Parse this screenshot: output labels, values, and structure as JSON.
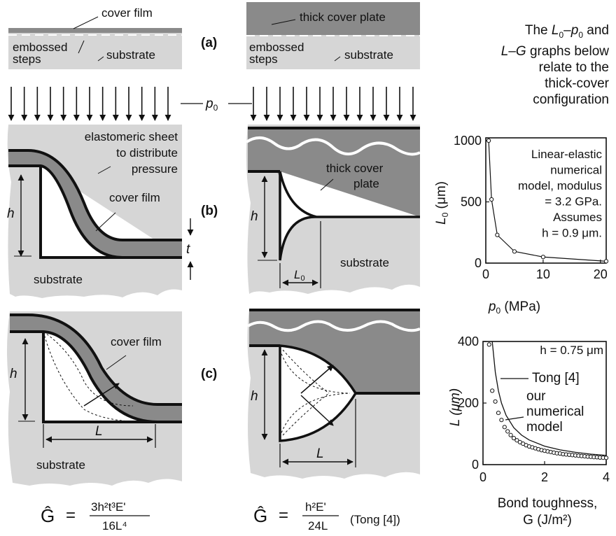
{
  "panels": {
    "a": "(a)",
    "b": "(b)",
    "c": "(c)"
  },
  "labels": {
    "cover_film": "cover film",
    "thick_cover_plate": "thick cover plate",
    "thick_cover_plate_l1": "thick cover",
    "thick_cover_plate_l2": "plate",
    "embossed": "embossed",
    "steps": "steps",
    "substrate": "substrate",
    "elastomeric_l1": "elastomeric sheet",
    "elastomeric_l2": "to distribute",
    "elastomeric_l3": "pressure",
    "pressure": "p",
    "pressure_sub": "0",
    "h": "h",
    "t": "t",
    "L0": "L",
    "L0_sub": "0",
    "L": "L"
  },
  "note": {
    "line1_pre": "The ",
    "line1_L": "L",
    "line1_sub1": "0",
    "line1_dash": "–",
    "line1_p": "p",
    "line1_sub2": "0",
    "line1_post": " and",
    "line2_L": "L",
    "line2_dash": "–",
    "line2_G": "G",
    "line2_post": " graphs below",
    "line3": "relate to the",
    "line4": "thick-cover",
    "line5": "configuration"
  },
  "formulas": {
    "left": {
      "lhs": "Ĝ",
      "eq": "=",
      "num": "3h²t³E'",
      "den": "16L⁴"
    },
    "right": {
      "lhs": "Ĝ",
      "eq": "=",
      "num": "h²E'",
      "den": "24L",
      "ref": "(Tong [4])"
    }
  },
  "chart_data": [
    {
      "type": "line",
      "title": "",
      "xlabel": "p0 (MPa)",
      "xlabel_main": "p",
      "xlabel_sub": "0",
      "xlabel_unit": " (MPa)",
      "ylabel": "L0 (μm)",
      "ylabel_main": "L",
      "ylabel_sub": "0",
      "ylabel_unit": " (μm)",
      "xlim": [
        0,
        21
      ],
      "ylim": [
        0,
        1000
      ],
      "x_ticks": [
        0,
        10,
        20
      ],
      "y_ticks": [
        0,
        500,
        1000
      ],
      "grid": false,
      "series": [
        {
          "x": [
            0.5,
            1,
            2,
            5,
            10,
            21
          ],
          "y": [
            1000,
            520,
            230,
            95,
            50,
            15
          ]
        }
      ],
      "annotation": [
        "Linear-elastic",
        "numerical",
        "model, modulus",
        "= 3.2 GPa.",
        "Assumes",
        "h = 0.9 μm."
      ]
    },
    {
      "type": "scatter",
      "title": "",
      "xlabel": "Bond toughness, G (J/m²)",
      "xlabel_l1": "Bond toughness,",
      "xlabel_l2": "G (J/m²)",
      "ylabel": "L (μm)",
      "xlim": [
        0,
        4
      ],
      "ylim": [
        0,
        400
      ],
      "x_ticks": [
        0,
        2,
        4
      ],
      "y_ticks": [
        0,
        200,
        400
      ],
      "grid": false,
      "annotation": "h = 0.75 μm",
      "series": [
        {
          "name": "Tong [4]",
          "type": "line",
          "x": [
            0.25,
            0.3,
            0.4,
            0.5,
            0.6,
            0.75,
            1,
            1.25,
            1.5,
            2,
            2.5,
            3,
            3.5,
            4
          ],
          "y": [
            480,
            400,
            300,
            240,
            200,
            160,
            120,
            96,
            80,
            60,
            48,
            40,
            34,
            30
          ]
        },
        {
          "name": "our numerical model",
          "type": "scatter",
          "x": [
            0.2,
            0.3,
            0.4,
            0.5,
            0.6,
            0.7,
            0.8,
            0.9,
            1.0,
            1.1,
            1.2,
            1.3,
            1.4,
            1.5,
            1.6,
            1.7,
            1.8,
            1.9,
            2.0,
            2.1,
            2.2,
            2.3,
            2.4,
            2.5,
            2.6,
            2.7,
            2.8,
            2.9,
            3.0,
            3.1,
            3.2,
            3.3,
            3.4,
            3.5,
            3.6,
            3.7,
            3.8,
            3.9,
            4.0
          ],
          "y": [
            390,
            240,
            205,
            168,
            145,
            122,
            108,
            96,
            86,
            79,
            73,
            68,
            63,
            59,
            56,
            53,
            50,
            47,
            45,
            43,
            41,
            39,
            37,
            36,
            34,
            33,
            32,
            31,
            30,
            29,
            28,
            27,
            26,
            25.5,
            24.5,
            24,
            23,
            22.5,
            22
          ]
        }
      ]
    }
  ]
}
